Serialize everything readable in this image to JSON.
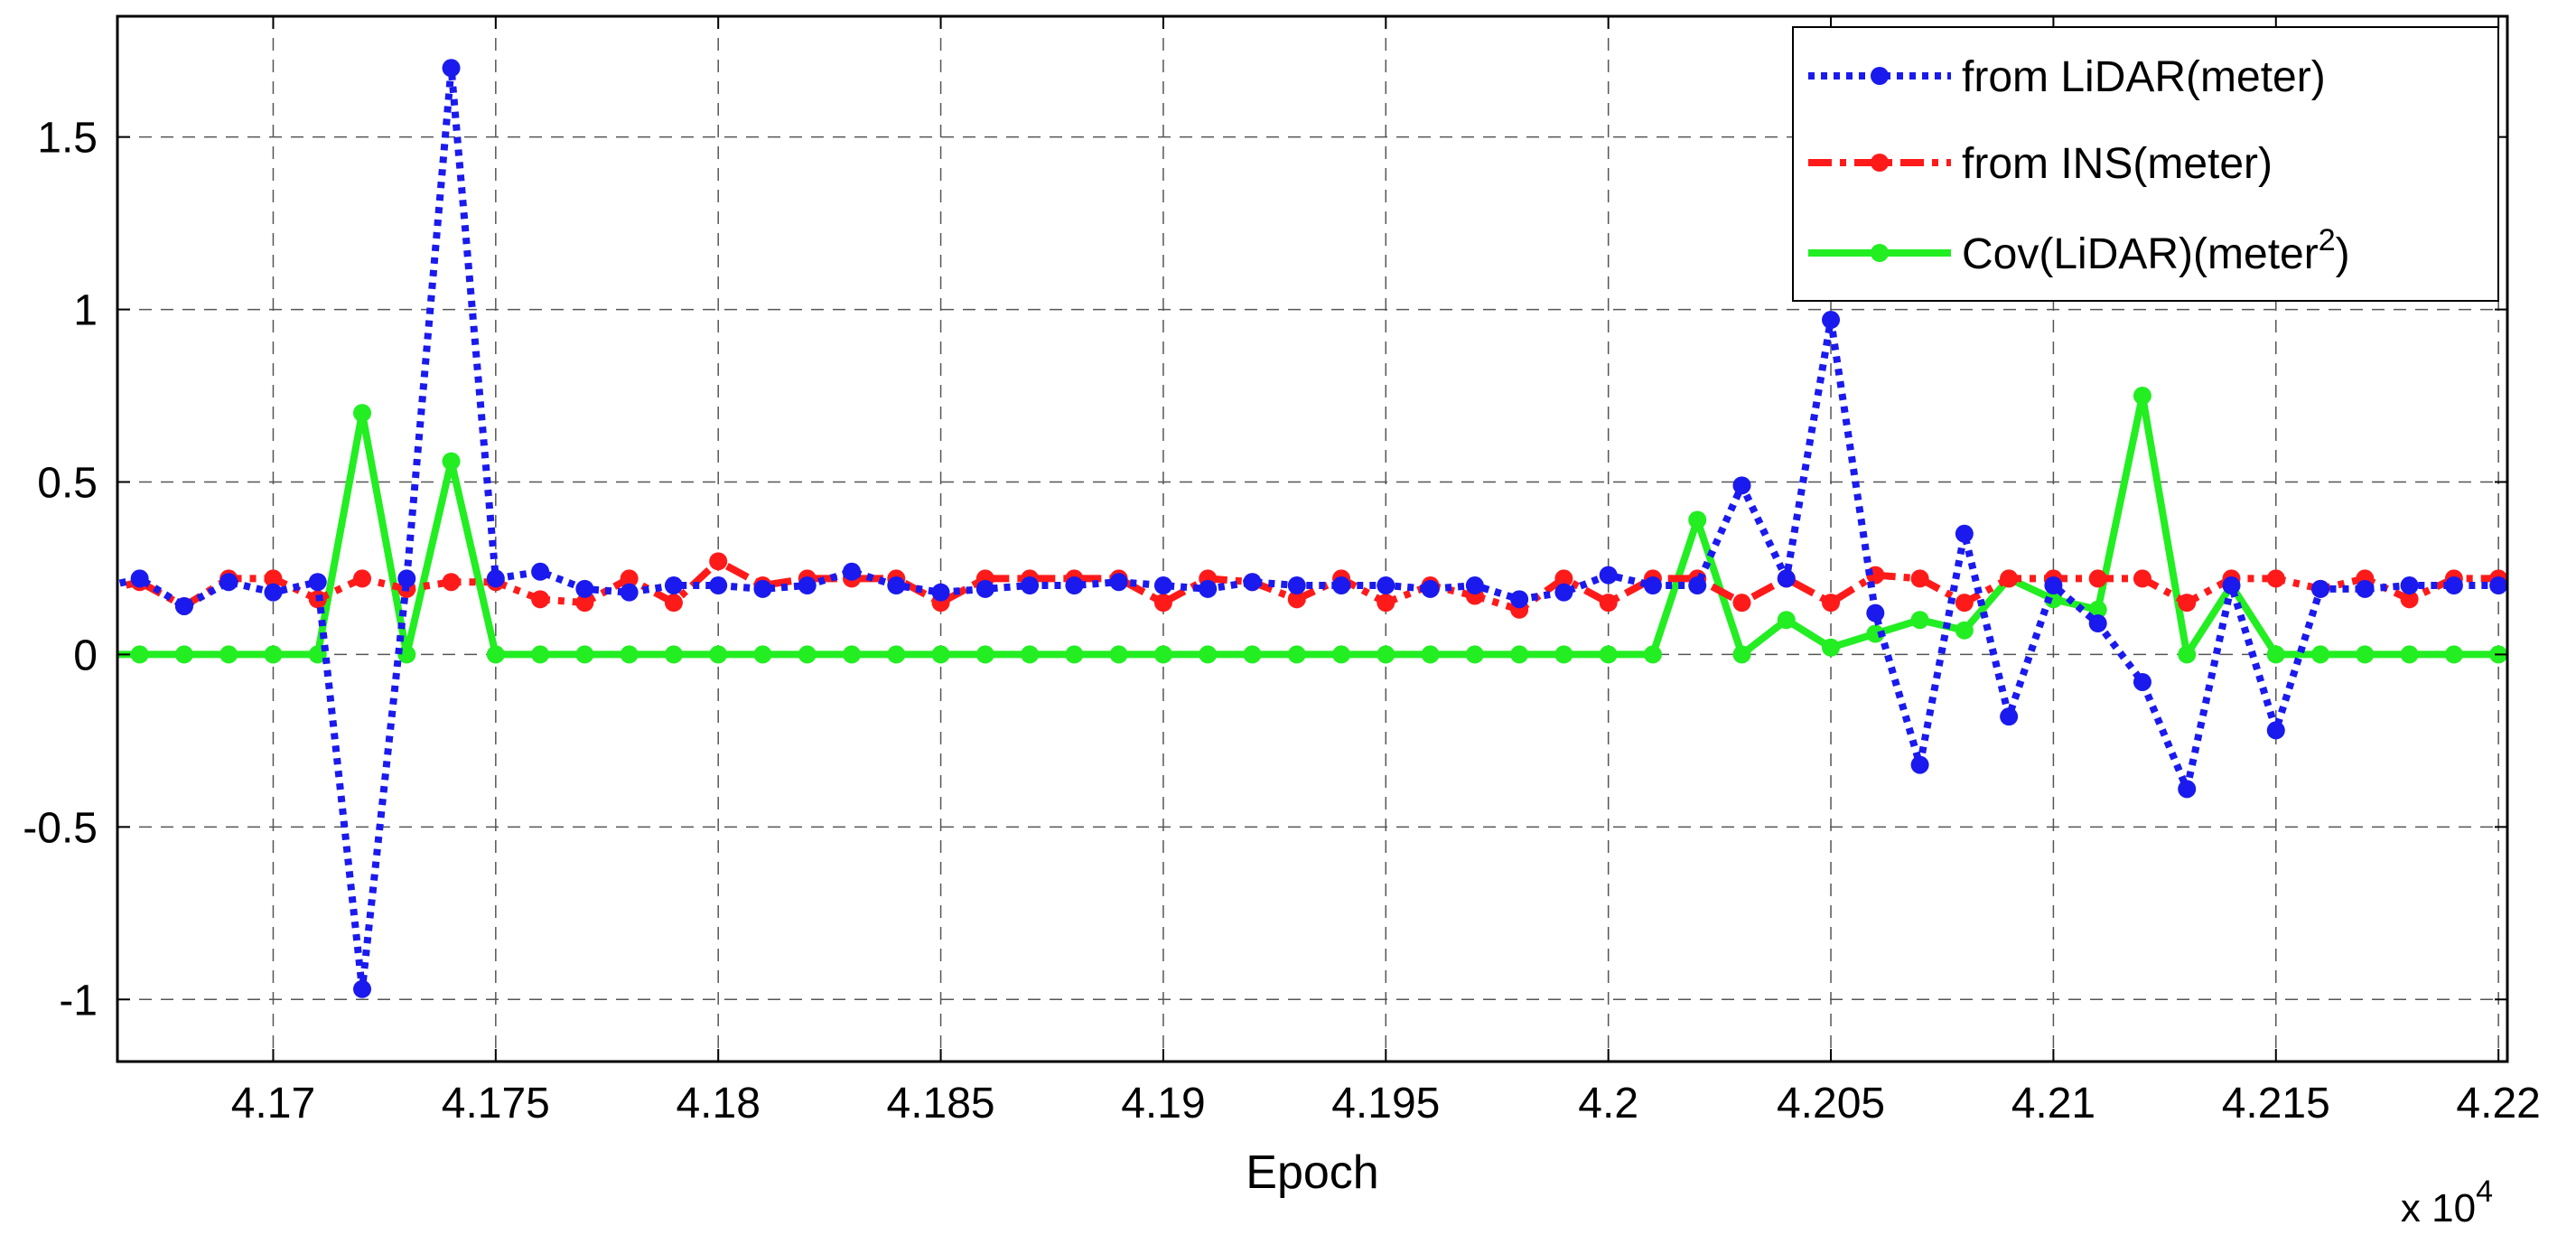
{
  "chart_data": {
    "type": "line",
    "title": "",
    "xlabel": "Epoch",
    "ylabel": "",
    "x_multiplier_label": {
      "base": "x 10",
      "exponent": "4"
    },
    "xlim": [
      41665,
      42202
    ],
    "ylim": [
      -1.18,
      1.85
    ],
    "grid": true,
    "grid_style": "dashed",
    "legend_position": "top-right",
    "x_ticks": [
      41700,
      41750,
      41800,
      41850,
      41900,
      41950,
      42000,
      42050,
      42100,
      42150,
      42200
    ],
    "x_tick_labels": [
      "4.17",
      "4.175",
      "4.18",
      "4.185",
      "4.19",
      "4.195",
      "4.2",
      "4.205",
      "4.21",
      "4.215",
      "4.22"
    ],
    "y_ticks": [
      -1,
      -0.5,
      0,
      0.5,
      1,
      1.5
    ],
    "y_tick_labels": [
      "-1",
      "-0.5",
      "0",
      "0.5",
      "1",
      "1.5"
    ],
    "x": [
      41660,
      41670,
      41680,
      41690,
      41700,
      41710,
      41720,
      41730,
      41740,
      41750,
      41760,
      41770,
      41780,
      41790,
      41800,
      41810,
      41820,
      41830,
      41840,
      41850,
      41860,
      41870,
      41880,
      41890,
      41900,
      41910,
      41920,
      41930,
      41940,
      41950,
      41960,
      41970,
      41980,
      41990,
      42000,
      42010,
      42020,
      42030,
      42040,
      42050,
      42060,
      42070,
      42080,
      42090,
      42100,
      42110,
      42120,
      42130,
      42140,
      42150,
      42160,
      42170,
      42180,
      42190,
      42200
    ],
    "series": [
      {
        "name": "from LiDAR(meter)",
        "color": "#1a1aee",
        "style": "dotted",
        "values": [
          0.19,
          0.22,
          0.14,
          0.21,
          0.18,
          0.21,
          -0.97,
          0.22,
          1.7,
          0.22,
          0.24,
          0.19,
          0.18,
          0.2,
          0.2,
          0.19,
          0.2,
          0.24,
          0.2,
          0.18,
          0.19,
          0.2,
          0.2,
          0.21,
          0.2,
          0.19,
          0.21,
          0.2,
          0.2,
          0.2,
          0.19,
          0.2,
          0.16,
          0.18,
          0.23,
          0.2,
          0.2,
          0.49,
          0.22,
          0.97,
          0.12,
          -0.32,
          0.35,
          -0.18,
          0.2,
          0.09,
          -0.08,
          -0.39,
          0.2,
          -0.22,
          0.19,
          0.19,
          0.2,
          0.2,
          0.2
        ]
      },
      {
        "name": "from INS(meter)",
        "color": "#ff1a1a",
        "style": "dashdot",
        "values": [
          0.18,
          0.21,
          0.14,
          0.22,
          0.22,
          0.16,
          0.22,
          0.19,
          0.21,
          0.21,
          0.16,
          0.15,
          0.22,
          0.15,
          0.27,
          0.2,
          0.22,
          0.22,
          0.22,
          0.15,
          0.22,
          0.22,
          0.22,
          0.22,
          0.15,
          0.22,
          0.21,
          0.16,
          0.22,
          0.15,
          0.2,
          0.17,
          0.13,
          0.22,
          0.15,
          0.22,
          0.22,
          0.15,
          0.22,
          0.15,
          0.23,
          0.22,
          0.15,
          0.22,
          0.22,
          0.22,
          0.22,
          0.15,
          0.22,
          0.22,
          0.19,
          0.22,
          0.16,
          0.22,
          0.22
        ]
      },
      {
        "name": "Cov(LiDAR)(meter²)",
        "legend_base": "Cov(LiDAR)(meter",
        "legend_sup": "2",
        "legend_tail": ")",
        "color": "#22ee22",
        "style": "solid",
        "values": [
          0,
          0,
          0,
          0,
          0,
          0,
          0.7,
          0,
          0.56,
          0,
          0,
          0,
          0,
          0,
          0,
          0,
          0,
          0,
          0,
          0,
          0,
          0,
          0,
          0,
          0,
          0,
          0,
          0,
          0,
          0,
          0,
          0,
          0,
          0,
          0,
          0,
          0.39,
          0,
          0.1,
          0.02,
          0.06,
          0.1,
          0.07,
          0.22,
          0.16,
          0.13,
          0.75,
          0,
          0.2,
          0,
          0,
          0,
          0,
          0,
          0
        ]
      }
    ]
  }
}
